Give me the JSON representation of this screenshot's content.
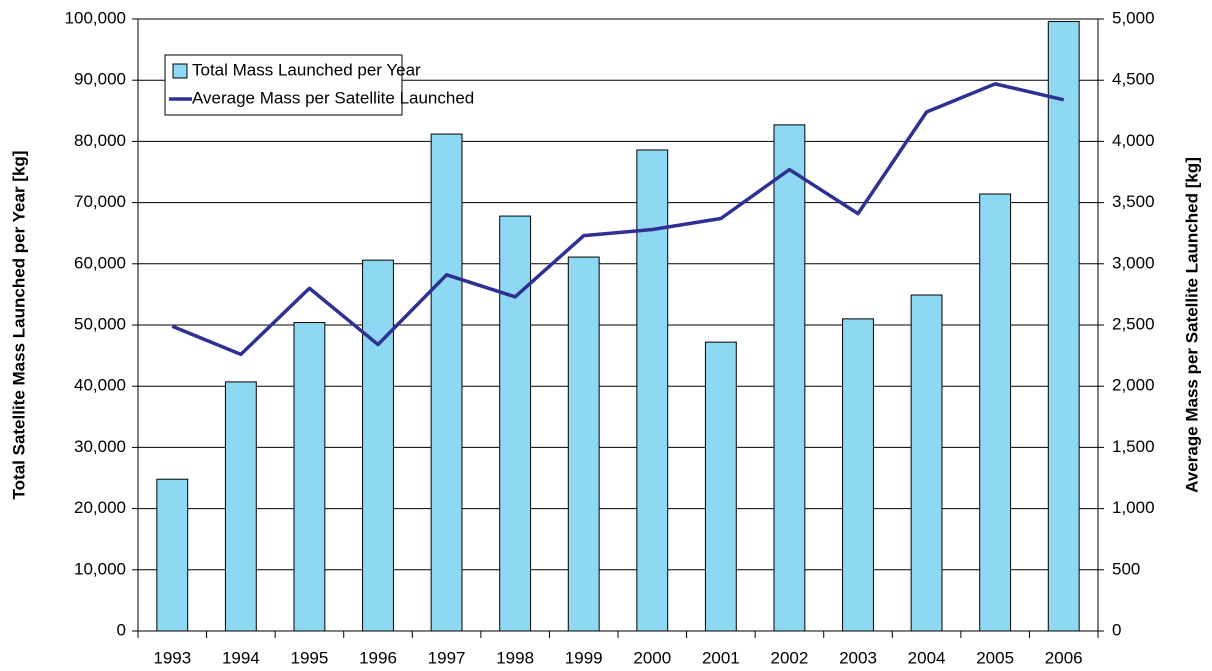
{
  "chart_data": {
    "type": "bar",
    "y_label": "Total Satellite Mass Launched per Year [kg]",
    "y2_label": "Average Mass per Satellite Launched [kg]",
    "categories": [
      "1993",
      "1994",
      "1995",
      "1996",
      "1997",
      "1998",
      "1999",
      "2000",
      "2001",
      "2002",
      "2003",
      "2004",
      "2005",
      "2006"
    ],
    "series": [
      {
        "name": "Total Mass Launched per Year",
        "type": "bar",
        "color": "#8fd8f4",
        "values": [
          24800,
          40700,
          50400,
          60600,
          81200,
          67800,
          61100,
          78600,
          47200,
          82700,
          51000,
          54900,
          71400,
          99600
        ]
      },
      {
        "name": "Average Mass per Satellite Launched",
        "type": "line",
        "color": "#2e3192",
        "axis": "y2",
        "values": [
          2490,
          2260,
          2800,
          2340,
          2910,
          2730,
          3230,
          3280,
          3370,
          3770,
          3410,
          4240,
          4470,
          4340
        ]
      }
    ],
    "ylim": [
      0,
      100000
    ],
    "yticks": [
      0,
      {
        "value": 10000,
        "label": "10,000"
      },
      {
        "value": 20000,
        "label": "20,000"
      },
      {
        "value": 30000,
        "label": "30,000"
      },
      {
        "value": 40000,
        "label": "40,000"
      },
      {
        "value": 50000,
        "label": "50,000"
      },
      {
        "value": 60000,
        "label": "60,000"
      },
      {
        "value": 70000,
        "label": "70,000"
      },
      {
        "value": 80000,
        "label": "80,000"
      },
      {
        "value": 90000,
        "label": "90,000"
      },
      {
        "value": 100000,
        "label": "100,000"
      }
    ],
    "y2lim": [
      0,
      5000
    ],
    "y2ticks": [
      0,
      500,
      {
        "value": 1000,
        "label": "1,000"
      },
      {
        "value": 1500,
        "label": "1,500"
      },
      {
        "value": 2000,
        "label": "2,000"
      },
      {
        "value": 2500,
        "label": "2,500"
      },
      {
        "value": 3000,
        "label": "3,000"
      },
      {
        "value": 3500,
        "label": "3,500"
      },
      {
        "value": 4000,
        "label": "4,000"
      },
      {
        "value": 4500,
        "label": "4,500"
      },
      {
        "value": 5000,
        "label": "5,000"
      }
    ],
    "grid": true,
    "legend": "upper-left"
  }
}
